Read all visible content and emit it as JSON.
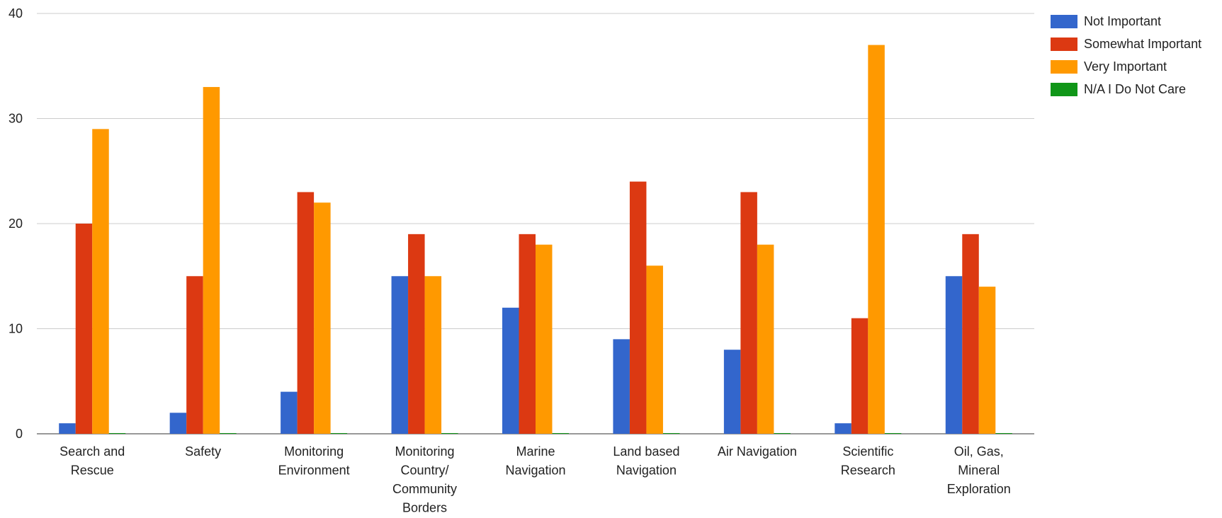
{
  "chart_data": {
    "type": "bar",
    "title": "",
    "xlabel": "",
    "ylabel": "",
    "ylim": [
      0,
      40
    ],
    "yticks": [
      0,
      10,
      20,
      30,
      40
    ],
    "grid": true,
    "legend_position": "top-right",
    "categories": [
      [
        "Search and",
        "Rescue"
      ],
      [
        "Safety"
      ],
      [
        "Monitoring",
        "Environment"
      ],
      [
        "Monitoring",
        "Country/",
        "Community",
        "Borders"
      ],
      [
        "Marine",
        "Navigation"
      ],
      [
        "Land based",
        "Navigation"
      ],
      [
        "Air Navigation"
      ],
      [
        "Scientific",
        "Research"
      ],
      [
        "Oil, Gas,",
        "Mineral",
        "Exploration"
      ]
    ],
    "series": [
      {
        "name": "Not Important",
        "color": "#3366cc",
        "values": [
          1,
          2,
          4,
          15,
          12,
          9,
          8,
          1,
          15
        ]
      },
      {
        "name": "Somewhat Important",
        "color": "#dc3912",
        "values": [
          20,
          15,
          23,
          19,
          19,
          24,
          23,
          11,
          19
        ]
      },
      {
        "name": "Very Important",
        "color": "#ff9900",
        "values": [
          29,
          33,
          22,
          15,
          18,
          16,
          18,
          37,
          14
        ]
      },
      {
        "name": "N/A I Do Not Care",
        "color": "#109618",
        "values": [
          0,
          0,
          0,
          0,
          0,
          0,
          0,
          0,
          0
        ]
      }
    ]
  }
}
